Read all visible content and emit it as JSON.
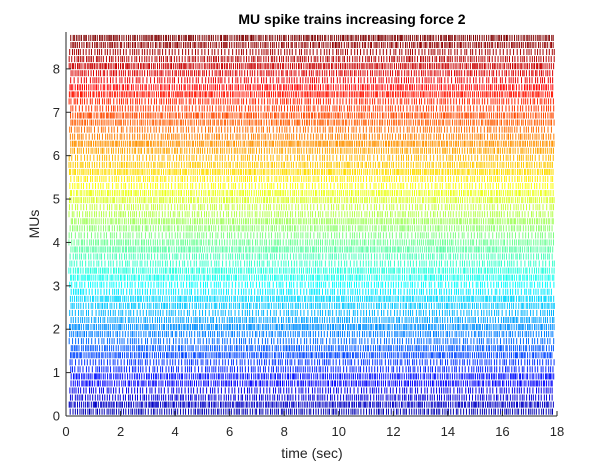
{
  "chart_data": {
    "type": "raster",
    "title": "MU spike trains increasing force 2",
    "xlabel": "time (sec)",
    "ylabel": "MUs",
    "xlim": [
      0,
      18
    ],
    "ylim": [
      0,
      8.85
    ],
    "x_ticks": [
      0,
      2,
      4,
      6,
      8,
      10,
      12,
      14,
      16,
      18
    ],
    "y_ticks": [
      0,
      1,
      2,
      3,
      4,
      5,
      6,
      7,
      8
    ],
    "grid": false,
    "legend": "none",
    "rows": {
      "count": 54,
      "spacing": 0.1625,
      "first_center": 0.1,
      "spike_height": 0.14,
      "firing_rate_range_hz": [
        9.5,
        16
      ],
      "colormap": "jet",
      "time_range": [
        0.1,
        17.9
      ]
    }
  }
}
